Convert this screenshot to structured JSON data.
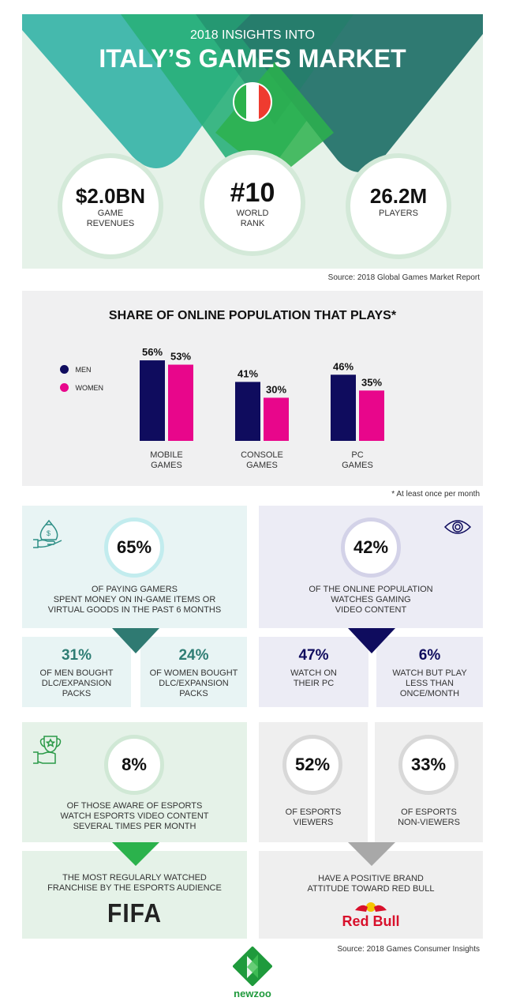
{
  "header": {
    "subtitle": "2018 INSIGHTS INTO",
    "title": "ITALY’S GAMES MARKET",
    "flag": "italy-flag"
  },
  "kpis": [
    {
      "value": "$2.0BN",
      "label1": "GAME",
      "label2": "REVENUES"
    },
    {
      "value": "#10",
      "label1": "WORLD",
      "label2": "RANK"
    },
    {
      "value": "26.2M",
      "label1": "PLAYERS",
      "label2": ""
    }
  ],
  "source1": "Source: 2018 Global Games Market Report",
  "chart_data": {
    "type": "bar",
    "title": "SHARE OF ONLINE POPULATION THAT PLAYS*",
    "categories": [
      [
        "MOBILE",
        "GAMES"
      ],
      [
        "CONSOLE",
        "GAMES"
      ],
      [
        "PC",
        "GAMES"
      ]
    ],
    "series": [
      {
        "name": "MEN",
        "color": "#0f0c5e",
        "values": [
          56,
          41,
          46
        ],
        "labels": [
          "56%",
          "41%",
          "46%"
        ]
      },
      {
        "name": "WOMEN",
        "color": "#e8068b",
        "values": [
          53,
          30,
          35
        ],
        "labels": [
          "53%",
          "30%",
          "35%"
        ]
      }
    ],
    "legend": "left",
    "grid": false,
    "ylim": [
      0,
      60
    ],
    "footnote": "* At least once per month"
  },
  "spending": {
    "icon": "money-bag-icon",
    "value": "65%",
    "lines": [
      "OF PAYING GAMERS",
      "SPENT MONEY ON IN-GAME ITEMS OR",
      "VIRTUAL GOODS IN THE PAST 6 MONTHS"
    ],
    "men": {
      "value": "31%",
      "lines": [
        "OF MEN BOUGHT",
        "DLC/EXPANSION",
        "PACKS"
      ]
    },
    "women": {
      "value": "24%",
      "lines": [
        "OF WOMEN BOUGHT",
        "DLC/EXPANSION",
        "PACKS"
      ]
    }
  },
  "video": {
    "icon": "eye-icon",
    "value": "42%",
    "lines": [
      "OF THE ONLINE POPULATION",
      "WATCHES GAMING",
      "VIDEO CONTENT"
    ],
    "pc": {
      "value": "47%",
      "lines": [
        "WATCH ON",
        "THEIR PC"
      ]
    },
    "rare": {
      "value": "6%",
      "lines": [
        "WATCH BUT PLAY",
        "LESS THAN",
        "ONCE/MONTH"
      ]
    }
  },
  "esports": {
    "icon": "trophy-icon",
    "value": "8%",
    "lines": [
      "OF THOSE AWARE OF ESPORTS",
      "WATCH ESPORTS VIDEO CONTENT",
      "SEVERAL TIMES PER MONTH"
    ],
    "fifa": {
      "lines": [
        "THE MOST REGULARLY WATCHED",
        "FRANCHISE BY THE ESPORTS AUDIENCE"
      ],
      "logo": "FIFA"
    }
  },
  "redbull": {
    "viewers": {
      "value": "52%",
      "lines": [
        "OF ESPORTS",
        "VIEWERS"
      ]
    },
    "nonviewers": {
      "value": "33%",
      "lines": [
        "OF ESPORTS",
        "NON-VIEWERS"
      ]
    },
    "lines": [
      "HAVE A POSITIVE BRAND",
      "ATTITUDE TOWARD RED BULL"
    ],
    "logo": "Red Bull"
  },
  "source2": "Source: 2018 Games Consumer Insights",
  "brand": "newzoo",
  "colors": {
    "teal": "#45b9ad",
    "green": "#2bb24c",
    "darkteal": "#2f7a72",
    "navy": "#0f0c5e",
    "magenta": "#e8068b"
  }
}
